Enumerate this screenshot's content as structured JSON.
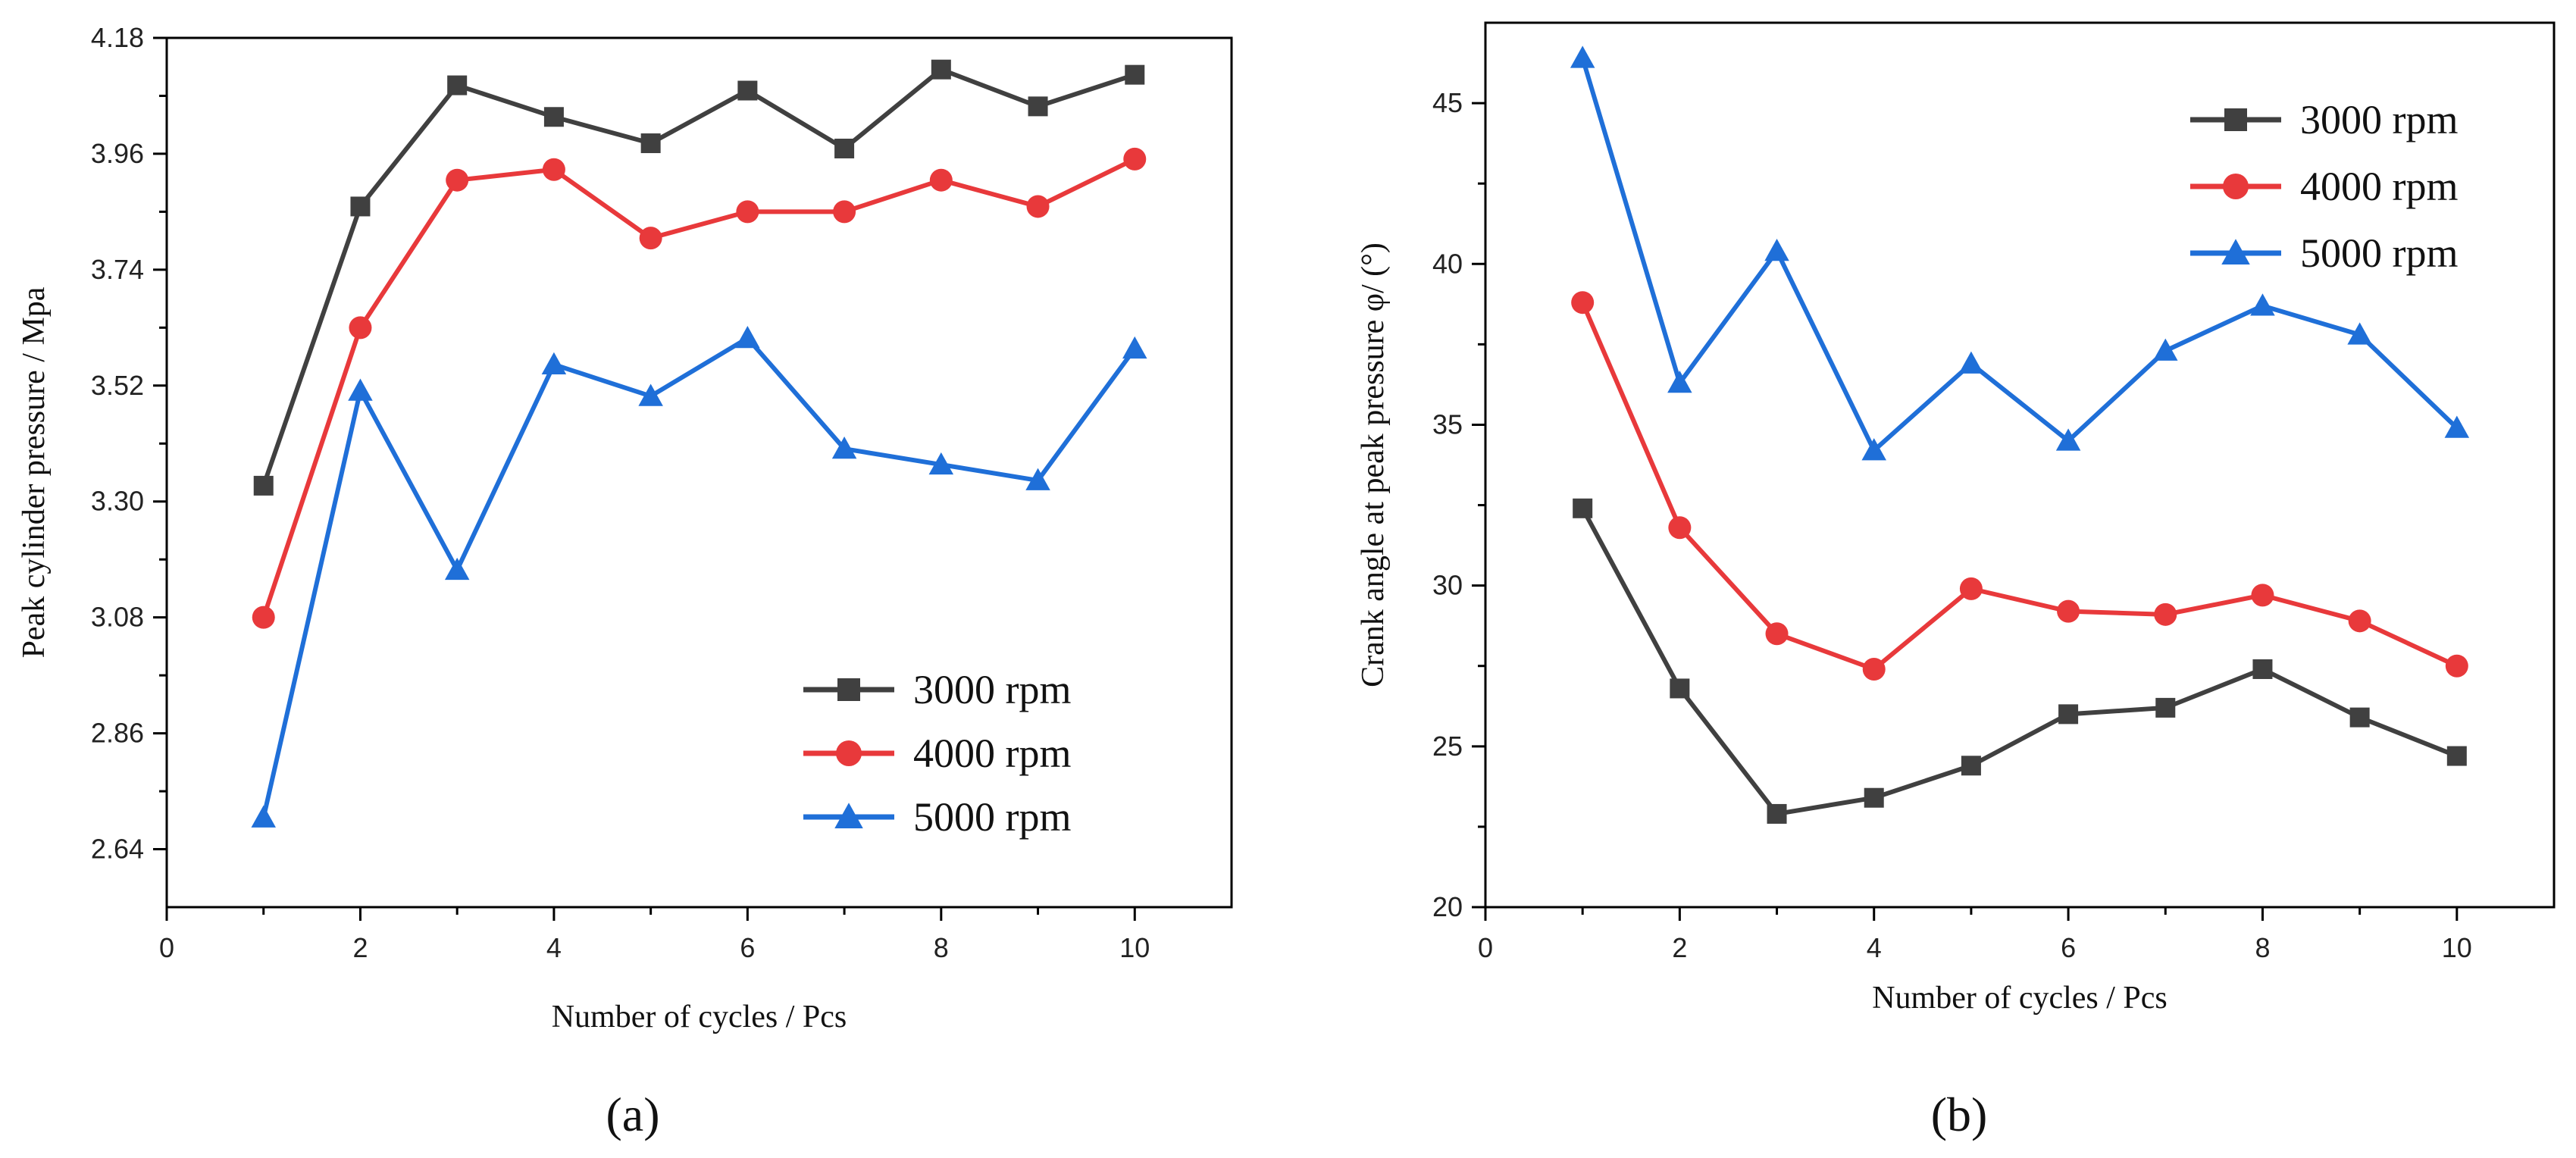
{
  "chart_data": [
    {
      "type": "line",
      "panel_label": "(a)",
      "xlabel": "Number of cycles / Pcs",
      "ylabel": "Peak cylinder pressure / Mpa",
      "xlim": [
        0,
        11
      ],
      "ylim": [
        2.53,
        4.18
      ],
      "xticks": [
        0,
        2,
        4,
        6,
        8,
        10
      ],
      "xtick_labels": [
        "0",
        "2",
        "4",
        "6",
        "8",
        "10"
      ],
      "yticks": [
        2.64,
        2.86,
        3.08,
        3.3,
        3.52,
        3.74,
        3.96,
        4.18
      ],
      "ytick_labels": [
        "2.64",
        "2.86",
        "3.08",
        "3.30",
        "3.52",
        "3.74",
        "3.96",
        "4.18"
      ],
      "legend_position": "bottom-right",
      "x": [
        1,
        2,
        3,
        4,
        5,
        6,
        7,
        8,
        9,
        10
      ],
      "series": [
        {
          "name": "3000 rpm",
          "color": "#404040",
          "marker": "square",
          "values": [
            3.33,
            3.86,
            4.09,
            4.03,
            3.98,
            4.08,
            3.97,
            4.12,
            4.05,
            4.11
          ]
        },
        {
          "name": "4000 rpm",
          "color": "#e8393b",
          "marker": "circle",
          "values": [
            3.08,
            3.63,
            3.91,
            3.93,
            3.8,
            3.85,
            3.85,
            3.91,
            3.86,
            3.95
          ]
        },
        {
          "name": "5000 rpm",
          "color": "#1f6fd8",
          "marker": "triangle",
          "values": [
            2.7,
            3.51,
            3.17,
            3.56,
            3.5,
            3.61,
            3.4,
            3.37,
            3.34,
            3.59
          ]
        }
      ]
    },
    {
      "type": "line",
      "panel_label": "(b)",
      "xlabel": "Number of cycles / Pcs",
      "ylabel": "Crank angle at peak pressure φ/ (°)",
      "xlim": [
        0,
        11
      ],
      "ylim": [
        20,
        47.5
      ],
      "xticks": [
        0,
        2,
        4,
        6,
        8,
        10
      ],
      "xtick_labels": [
        "0",
        "2",
        "4",
        "6",
        "8",
        "10"
      ],
      "yticks": [
        20,
        25,
        30,
        35,
        40,
        45
      ],
      "ytick_labels": [
        "20",
        "25",
        "30",
        "35",
        "40",
        "45"
      ],
      "legend_position": "top-right",
      "x": [
        1,
        2,
        3,
        4,
        5,
        6,
        7,
        8,
        9,
        10
      ],
      "series": [
        {
          "name": "3000 rpm",
          "color": "#404040",
          "marker": "square",
          "values": [
            32.4,
            26.8,
            22.9,
            23.4,
            24.4,
            26.0,
            26.2,
            27.4,
            25.9,
            24.7
          ]
        },
        {
          "name": "4000 rpm",
          "color": "#e8393b",
          "marker": "circle",
          "values": [
            38.8,
            31.8,
            28.5,
            27.4,
            29.9,
            29.2,
            29.1,
            29.7,
            28.9,
            27.5
          ]
        },
        {
          "name": "5000 rpm",
          "color": "#1f6fd8",
          "marker": "triangle",
          "values": [
            46.4,
            36.3,
            40.4,
            34.2,
            36.9,
            34.5,
            37.3,
            38.7,
            37.8,
            34.9
          ]
        }
      ]
    }
  ]
}
